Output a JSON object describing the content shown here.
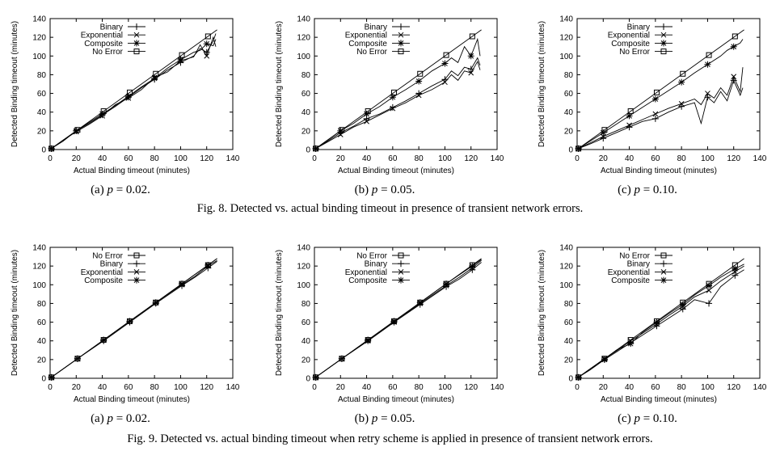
{
  "figures": [
    {
      "caption": "Fig. 8.  Detected vs. actual binding timeout in presence of transient network errors.",
      "legend": [
        "Binary",
        "Exponential",
        "Composite",
        "No Error"
      ]
    },
    {
      "caption": "Fig. 9.  Detected vs. actual binding timeout when retry scheme is applied in presence of transient network errors.",
      "legend": [
        "No Error",
        "Binary",
        "Exponential",
        "Composite"
      ]
    }
  ],
  "chart_data": [
    {
      "type": "line",
      "panel": "Fig 8a",
      "subcaption_prefix": "(a)",
      "p_label": "p",
      "p_value": "= 0.02.",
      "xlabel": "Actual Binding timeout (minutes)",
      "ylabel": "Detected Binding timeout (minutes)",
      "xlim": [
        0,
        140
      ],
      "ylim": [
        0,
        140
      ],
      "xticks": [
        0,
        20,
        40,
        60,
        80,
        100,
        120,
        140
      ],
      "yticks": [
        0,
        20,
        40,
        60,
        80,
        100,
        120,
        140
      ],
      "grid": false,
      "legend_position": "top-left",
      "series": [
        {
          "name": "Binary",
          "x": [
            1,
            10,
            20,
            30,
            40,
            50,
            60,
            70,
            80,
            90,
            100,
            110,
            115,
            120,
            125,
            127
          ],
          "y": [
            1,
            9,
            20,
            28,
            37,
            46,
            56,
            66,
            75,
            85,
            93,
            100,
            108,
            104,
            116,
            124
          ]
        },
        {
          "name": "Exponential",
          "x": [
            1,
            10,
            20,
            30,
            40,
            50,
            60,
            70,
            80,
            90,
            100,
            110,
            115,
            120,
            125,
            127
          ],
          "y": [
            1,
            10,
            19,
            27,
            36,
            48,
            55,
            64,
            77,
            83,
            95,
            99,
            112,
            100,
            120,
            110
          ]
        },
        {
          "name": "Composite",
          "x": [
            1,
            10,
            20,
            30,
            40,
            50,
            60,
            70,
            80,
            90,
            100,
            110,
            115,
            120,
            125,
            127
          ],
          "y": [
            1,
            10,
            20,
            29,
            38,
            47,
            57,
            67,
            76,
            87,
            96,
            104,
            106,
            113,
            111,
            118
          ]
        },
        {
          "name": "No Error",
          "x": [
            1,
            21,
            41,
            61,
            81,
            101,
            121,
            128
          ],
          "y": [
            1,
            21,
            41,
            61,
            81,
            101,
            121,
            128
          ]
        }
      ]
    },
    {
      "type": "line",
      "panel": "Fig 8b",
      "subcaption_prefix": "(b)",
      "p_label": "p",
      "p_value": "= 0.05.",
      "xlabel": "Actual Binding timeout (minutes)",
      "ylabel": "Detected Binding timeout (minutes)",
      "xlim": [
        0,
        140
      ],
      "ylim": [
        0,
        140
      ],
      "xticks": [
        0,
        20,
        40,
        60,
        80,
        100,
        120,
        140
      ],
      "yticks": [
        0,
        20,
        40,
        60,
        80,
        100,
        120,
        140
      ],
      "grid": false,
      "legend_position": "top-left",
      "series": [
        {
          "name": "Binary",
          "x": [
            1,
            10,
            20,
            30,
            40,
            50,
            60,
            70,
            80,
            90,
            100,
            105,
            110,
            115,
            120,
            125,
            127
          ],
          "y": [
            1,
            9,
            18,
            25,
            33,
            38,
            45,
            52,
            60,
            68,
            75,
            84,
            79,
            88,
            86,
            98,
            90
          ]
        },
        {
          "name": "Exponential",
          "x": [
            1,
            10,
            20,
            30,
            40,
            50,
            60,
            70,
            80,
            90,
            100,
            105,
            110,
            115,
            120,
            125,
            127
          ],
          "y": [
            1,
            8,
            16,
            24,
            30,
            37,
            44,
            50,
            58,
            64,
            72,
            80,
            74,
            84,
            82,
            94,
            85
          ]
        },
        {
          "name": "Composite",
          "x": [
            1,
            10,
            20,
            30,
            40,
            50,
            60,
            70,
            80,
            90,
            100,
            105,
            110,
            115,
            120,
            125,
            127
          ],
          "y": [
            1,
            10,
            20,
            28,
            38,
            46,
            56,
            64,
            73,
            84,
            92,
            98,
            93,
            110,
            100,
            118,
            100
          ]
        },
        {
          "name": "No Error",
          "x": [
            1,
            21,
            41,
            61,
            81,
            101,
            121,
            128
          ],
          "y": [
            1,
            21,
            41,
            61,
            81,
            101,
            121,
            128
          ]
        }
      ]
    },
    {
      "type": "line",
      "panel": "Fig 8c",
      "subcaption_prefix": "(c)",
      "p_label": "p",
      "p_value": "= 0.10.",
      "xlabel": "Actual Binding timeout (minutes)",
      "ylabel": "Detected Binding timeout (minutes)",
      "xlim": [
        0,
        140
      ],
      "ylim": [
        0,
        140
      ],
      "xticks": [
        0,
        20,
        40,
        60,
        80,
        100,
        120,
        140
      ],
      "yticks": [
        0,
        20,
        40,
        60,
        80,
        100,
        120,
        140
      ],
      "grid": false,
      "legend_position": "top-left",
      "series": [
        {
          "name": "Binary",
          "x": [
            1,
            10,
            20,
            30,
            40,
            50,
            60,
            70,
            80,
            90,
            95,
            100,
            105,
            110,
            115,
            120,
            125,
            127
          ],
          "y": [
            1,
            6,
            12,
            18,
            24,
            30,
            33,
            40,
            46,
            50,
            28,
            56,
            50,
            62,
            52,
            74,
            58,
            66
          ]
        },
        {
          "name": "Exponential",
          "x": [
            1,
            10,
            20,
            30,
            40,
            50,
            60,
            70,
            80,
            90,
            95,
            100,
            105,
            110,
            115,
            120,
            125,
            127
          ],
          "y": [
            1,
            7,
            14,
            20,
            26,
            32,
            38,
            44,
            49,
            54,
            48,
            60,
            55,
            66,
            58,
            78,
            62,
            88
          ]
        },
        {
          "name": "Composite",
          "x": [
            1,
            10,
            20,
            30,
            40,
            50,
            60,
            70,
            80,
            90,
            100,
            110,
            115,
            120,
            125,
            127
          ],
          "y": [
            1,
            9,
            18,
            27,
            36,
            45,
            54,
            63,
            72,
            82,
            91,
            100,
            106,
            110,
            114,
            118
          ]
        },
        {
          "name": "No Error",
          "x": [
            1,
            21,
            41,
            61,
            81,
            101,
            121,
            128
          ],
          "y": [
            1,
            21,
            41,
            61,
            81,
            101,
            121,
            128
          ]
        }
      ]
    },
    {
      "type": "line",
      "panel": "Fig 9a",
      "subcaption_prefix": "(a)",
      "p_label": "p",
      "p_value": "= 0.02.",
      "xlabel": "Actual Binding timeout (minutes)",
      "ylabel": "Detected Binding timeout (minutes)",
      "xlim": [
        0,
        140
      ],
      "ylim": [
        0,
        140
      ],
      "xticks": [
        0,
        20,
        40,
        60,
        80,
        100,
        120,
        140
      ],
      "yticks": [
        0,
        20,
        40,
        60,
        80,
        100,
        120,
        140
      ],
      "grid": false,
      "legend_position": "top-left",
      "series": [
        {
          "name": "No Error",
          "x": [
            1,
            21,
            41,
            61,
            81,
            101,
            121,
            128
          ],
          "y": [
            1,
            21,
            41,
            61,
            81,
            101,
            121,
            128
          ]
        },
        {
          "name": "Binary",
          "x": [
            1,
            21,
            41,
            61,
            81,
            101,
            111,
            121,
            128
          ],
          "y": [
            1,
            21,
            40,
            60,
            80,
            99,
            108,
            118,
            125
          ]
        },
        {
          "name": "Exponential",
          "x": [
            1,
            21,
            41,
            61,
            81,
            101,
            111,
            121,
            128
          ],
          "y": [
            1,
            21,
            41,
            61,
            81,
            100,
            109,
            120,
            126
          ]
        },
        {
          "name": "Composite",
          "x": [
            1,
            21,
            41,
            61,
            81,
            101,
            121,
            128
          ],
          "y": [
            1,
            21,
            41,
            61,
            81,
            101,
            121,
            128
          ]
        }
      ]
    },
    {
      "type": "line",
      "panel": "Fig 9b",
      "subcaption_prefix": "(b)",
      "p_label": "p",
      "p_value": "= 0.05.",
      "xlabel": "Actual Binding timeout (minutes)",
      "ylabel": "Detected Binding timeout (minutes)",
      "xlim": [
        0,
        140
      ],
      "ylim": [
        0,
        140
      ],
      "xticks": [
        0,
        20,
        40,
        60,
        80,
        100,
        120,
        140
      ],
      "yticks": [
        0,
        20,
        40,
        60,
        80,
        100,
        120,
        140
      ],
      "grid": false,
      "legend_position": "top-left",
      "series": [
        {
          "name": "No Error",
          "x": [
            1,
            21,
            41,
            61,
            81,
            101,
            121,
            128
          ],
          "y": [
            1,
            21,
            41,
            61,
            81,
            101,
            121,
            128
          ]
        },
        {
          "name": "Binary",
          "x": [
            1,
            21,
            41,
            61,
            81,
            101,
            111,
            121,
            128
          ],
          "y": [
            1,
            21,
            40,
            60,
            79,
            98,
            106,
            116,
            124
          ]
        },
        {
          "name": "Exponential",
          "x": [
            1,
            21,
            41,
            61,
            81,
            101,
            111,
            121,
            128
          ],
          "y": [
            1,
            21,
            40,
            60,
            80,
            99,
            108,
            118,
            126
          ]
        },
        {
          "name": "Composite",
          "x": [
            1,
            21,
            41,
            61,
            81,
            101,
            121,
            128
          ],
          "y": [
            1,
            21,
            41,
            61,
            81,
            101,
            120,
            127
          ]
        }
      ]
    },
    {
      "type": "line",
      "panel": "Fig 9c",
      "subcaption_prefix": "(c)",
      "p_label": "p",
      "p_value": "= 0.10.",
      "xlabel": "Actual Binding timeout (minutes)",
      "ylabel": "Detected Binding timeout (minutes)",
      "xlim": [
        0,
        140
      ],
      "ylim": [
        0,
        140
      ],
      "xticks": [
        0,
        20,
        40,
        60,
        80,
        100,
        120,
        140
      ],
      "yticks": [
        0,
        20,
        40,
        60,
        80,
        100,
        120,
        140
      ],
      "grid": false,
      "legend_position": "top-left",
      "series": [
        {
          "name": "No Error",
          "x": [
            1,
            21,
            41,
            61,
            81,
            101,
            121,
            128
          ],
          "y": [
            1,
            21,
            41,
            61,
            81,
            101,
            121,
            128
          ]
        },
        {
          "name": "Binary",
          "x": [
            1,
            10,
            21,
            30,
            41,
            50,
            61,
            70,
            81,
            90,
            101,
            110,
            121,
            128
          ],
          "y": [
            1,
            9,
            20,
            28,
            38,
            46,
            56,
            64,
            74,
            84,
            80,
            98,
            110,
            116
          ]
        },
        {
          "name": "Exponential",
          "x": [
            1,
            10,
            21,
            30,
            41,
            50,
            61,
            70,
            81,
            90,
            101,
            110,
            121,
            128
          ],
          "y": [
            1,
            10,
            21,
            29,
            40,
            48,
            58,
            67,
            77,
            87,
            94,
            104,
            114,
            120
          ]
        },
        {
          "name": "Composite",
          "x": [
            1,
            10,
            21,
            30,
            41,
            50,
            61,
            70,
            81,
            90,
            101,
            110,
            121,
            128
          ],
          "y": [
            1,
            10,
            20,
            30,
            37,
            49,
            60,
            69,
            79,
            89,
            99,
            108,
            117,
            122
          ]
        }
      ]
    }
  ]
}
